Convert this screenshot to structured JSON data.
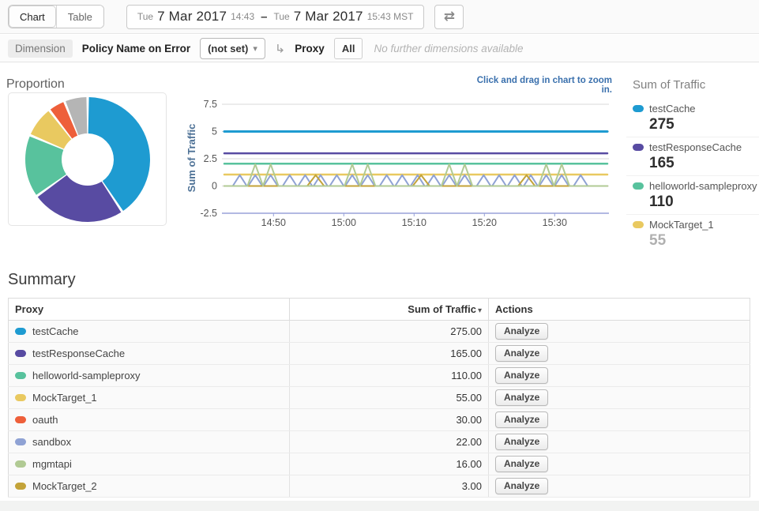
{
  "toolbar": {
    "chart_tab": "Chart",
    "table_tab": "Table",
    "date_range": {
      "start_day": "Tue",
      "start_date": "7 Mar 2017",
      "start_time": "14:43",
      "separator": "–",
      "end_day": "Tue",
      "end_date": "7 Mar 2017",
      "end_time": "15:43 MST"
    }
  },
  "icons": {
    "refresh": "⇄",
    "drilldown_arrow": "↳",
    "dropdown_caret": "▾",
    "sort_caret": "▾"
  },
  "dimension_bar": {
    "label": "Dimension",
    "dimension": "Policy Name on Error",
    "selected_value": "(not set)",
    "drilldown_dimension": "Proxy",
    "filter_value": "All",
    "note": "No further dimensions available"
  },
  "legend": {
    "title": "Sum of Traffic",
    "items": [
      {
        "name": "testCache",
        "value": "275",
        "color": "#1e9bd1",
        "muted": false
      },
      {
        "name": "testResponseCache",
        "value": "165",
        "color": "#584ba2",
        "muted": false
      },
      {
        "name": "helloworld-sampleproxy",
        "value": "110",
        "color": "#58c29d",
        "muted": false
      },
      {
        "name": "MockTarget_1",
        "value": "55",
        "color": "#e9c960",
        "muted": true
      }
    ]
  },
  "summary": {
    "title": "Summary",
    "columns": [
      "Proxy",
      "Sum of Traffic",
      "Actions"
    ],
    "rows": [
      {
        "name": "testCache",
        "color": "#1e9bd1",
        "value": "275.00",
        "action": "Analyze"
      },
      {
        "name": "testResponseCache",
        "color": "#584ba2",
        "value": "165.00",
        "action": "Analyze"
      },
      {
        "name": "helloworld-sampleproxy",
        "color": "#58c29d",
        "value": "110.00",
        "action": "Analyze"
      },
      {
        "name": "MockTarget_1",
        "color": "#e9c960",
        "value": "55.00",
        "action": "Analyze"
      },
      {
        "name": "oauth",
        "color": "#ee5f3a",
        "value": "30.00",
        "action": "Analyze"
      },
      {
        "name": "sandbox",
        "color": "#8fa2d4",
        "value": "22.00",
        "action": "Analyze"
      },
      {
        "name": "mgmtapi",
        "color": "#b1ca94",
        "value": "16.00",
        "action": "Analyze"
      },
      {
        "name": "MockTarget_2",
        "color": "#c3a339",
        "value": "3.00",
        "action": "Analyze"
      }
    ]
  },
  "chart_data": [
    {
      "type": "pie",
      "title": "Proportion",
      "labels": [
        "testCache",
        "testResponseCache",
        "helloworld-sampleproxy",
        "MockTarget_1",
        "oauth",
        "others"
      ],
      "values": [
        275,
        165,
        110,
        55,
        30,
        41
      ],
      "colors": [
        "#1e9bd1",
        "#584ba2",
        "#58c29d",
        "#e9c960",
        "#ee5f3a",
        "#b5b5b5"
      ],
      "inner_radius_ratio": 0.42
    },
    {
      "type": "line",
      "title": "Sum of Traffic over time",
      "note": "Click and drag in chart to zoom in.",
      "ylabel": "Sum of Traffic",
      "ylim": [
        -2.5,
        7.5
      ],
      "yticks": [
        7.5,
        5,
        2.5,
        0,
        -2.5
      ],
      "x_start_label": "14:43",
      "x_end_label": "15:43",
      "x_end": 54.5,
      "xticks": [
        {
          "label": "14:50",
          "t": 7
        },
        {
          "label": "15:00",
          "t": 17
        },
        {
          "label": "15:10",
          "t": 27
        },
        {
          "label": "15:20",
          "t": 37
        },
        {
          "label": "15:30",
          "t": 47
        }
      ],
      "series": [
        {
          "name": "testCache",
          "color": "#1e9bd1",
          "type": "flat",
          "value": 5,
          "width": 3,
          "total": 275
        },
        {
          "name": "testResponseCache",
          "color": "#584ba2",
          "type": "flat",
          "value": 3,
          "width": 2.5,
          "total": 165
        },
        {
          "name": "helloworld-sampleproxy",
          "color": "#58c29d",
          "type": "flat",
          "value": 2.05,
          "width": 2.5,
          "total": 110
        },
        {
          "name": "MockTarget_1",
          "color": "#e9c960",
          "type": "flat",
          "value": 1.05,
          "width": 2.5,
          "total": 55
        },
        {
          "name": "sandbox",
          "color": "#8fa2d4",
          "type": "spikes",
          "peak": 1,
          "half_width": 1.0,
          "width": 2,
          "total": 22,
          "times": [
            2.2,
            4.4,
            6.6,
            9.3,
            11.5,
            13.7,
            16.0,
            18.2,
            20.4,
            23.1,
            25.3,
            27.5,
            29.8,
            32.0,
            34.2,
            36.9,
            39.1,
            41.3,
            43.6,
            45.8,
            48.0,
            50.7
          ]
        },
        {
          "name": "MockTarget_2",
          "color": "#c3a339",
          "type": "spikes",
          "peak": 1,
          "half_width": 1.2,
          "width": 2,
          "total": 3,
          "times": [
            13.0,
            28.0,
            43.0
          ]
        },
        {
          "name": "mgmtapi",
          "color": "#b1ca94",
          "type": "spikes",
          "peak": 2,
          "half_width": 1.1,
          "width": 2,
          "total": 16,
          "times": [
            4.4,
            6.6,
            18.2,
            20.4,
            32.0,
            34.2,
            45.8,
            48.0
          ]
        }
      ]
    }
  ]
}
